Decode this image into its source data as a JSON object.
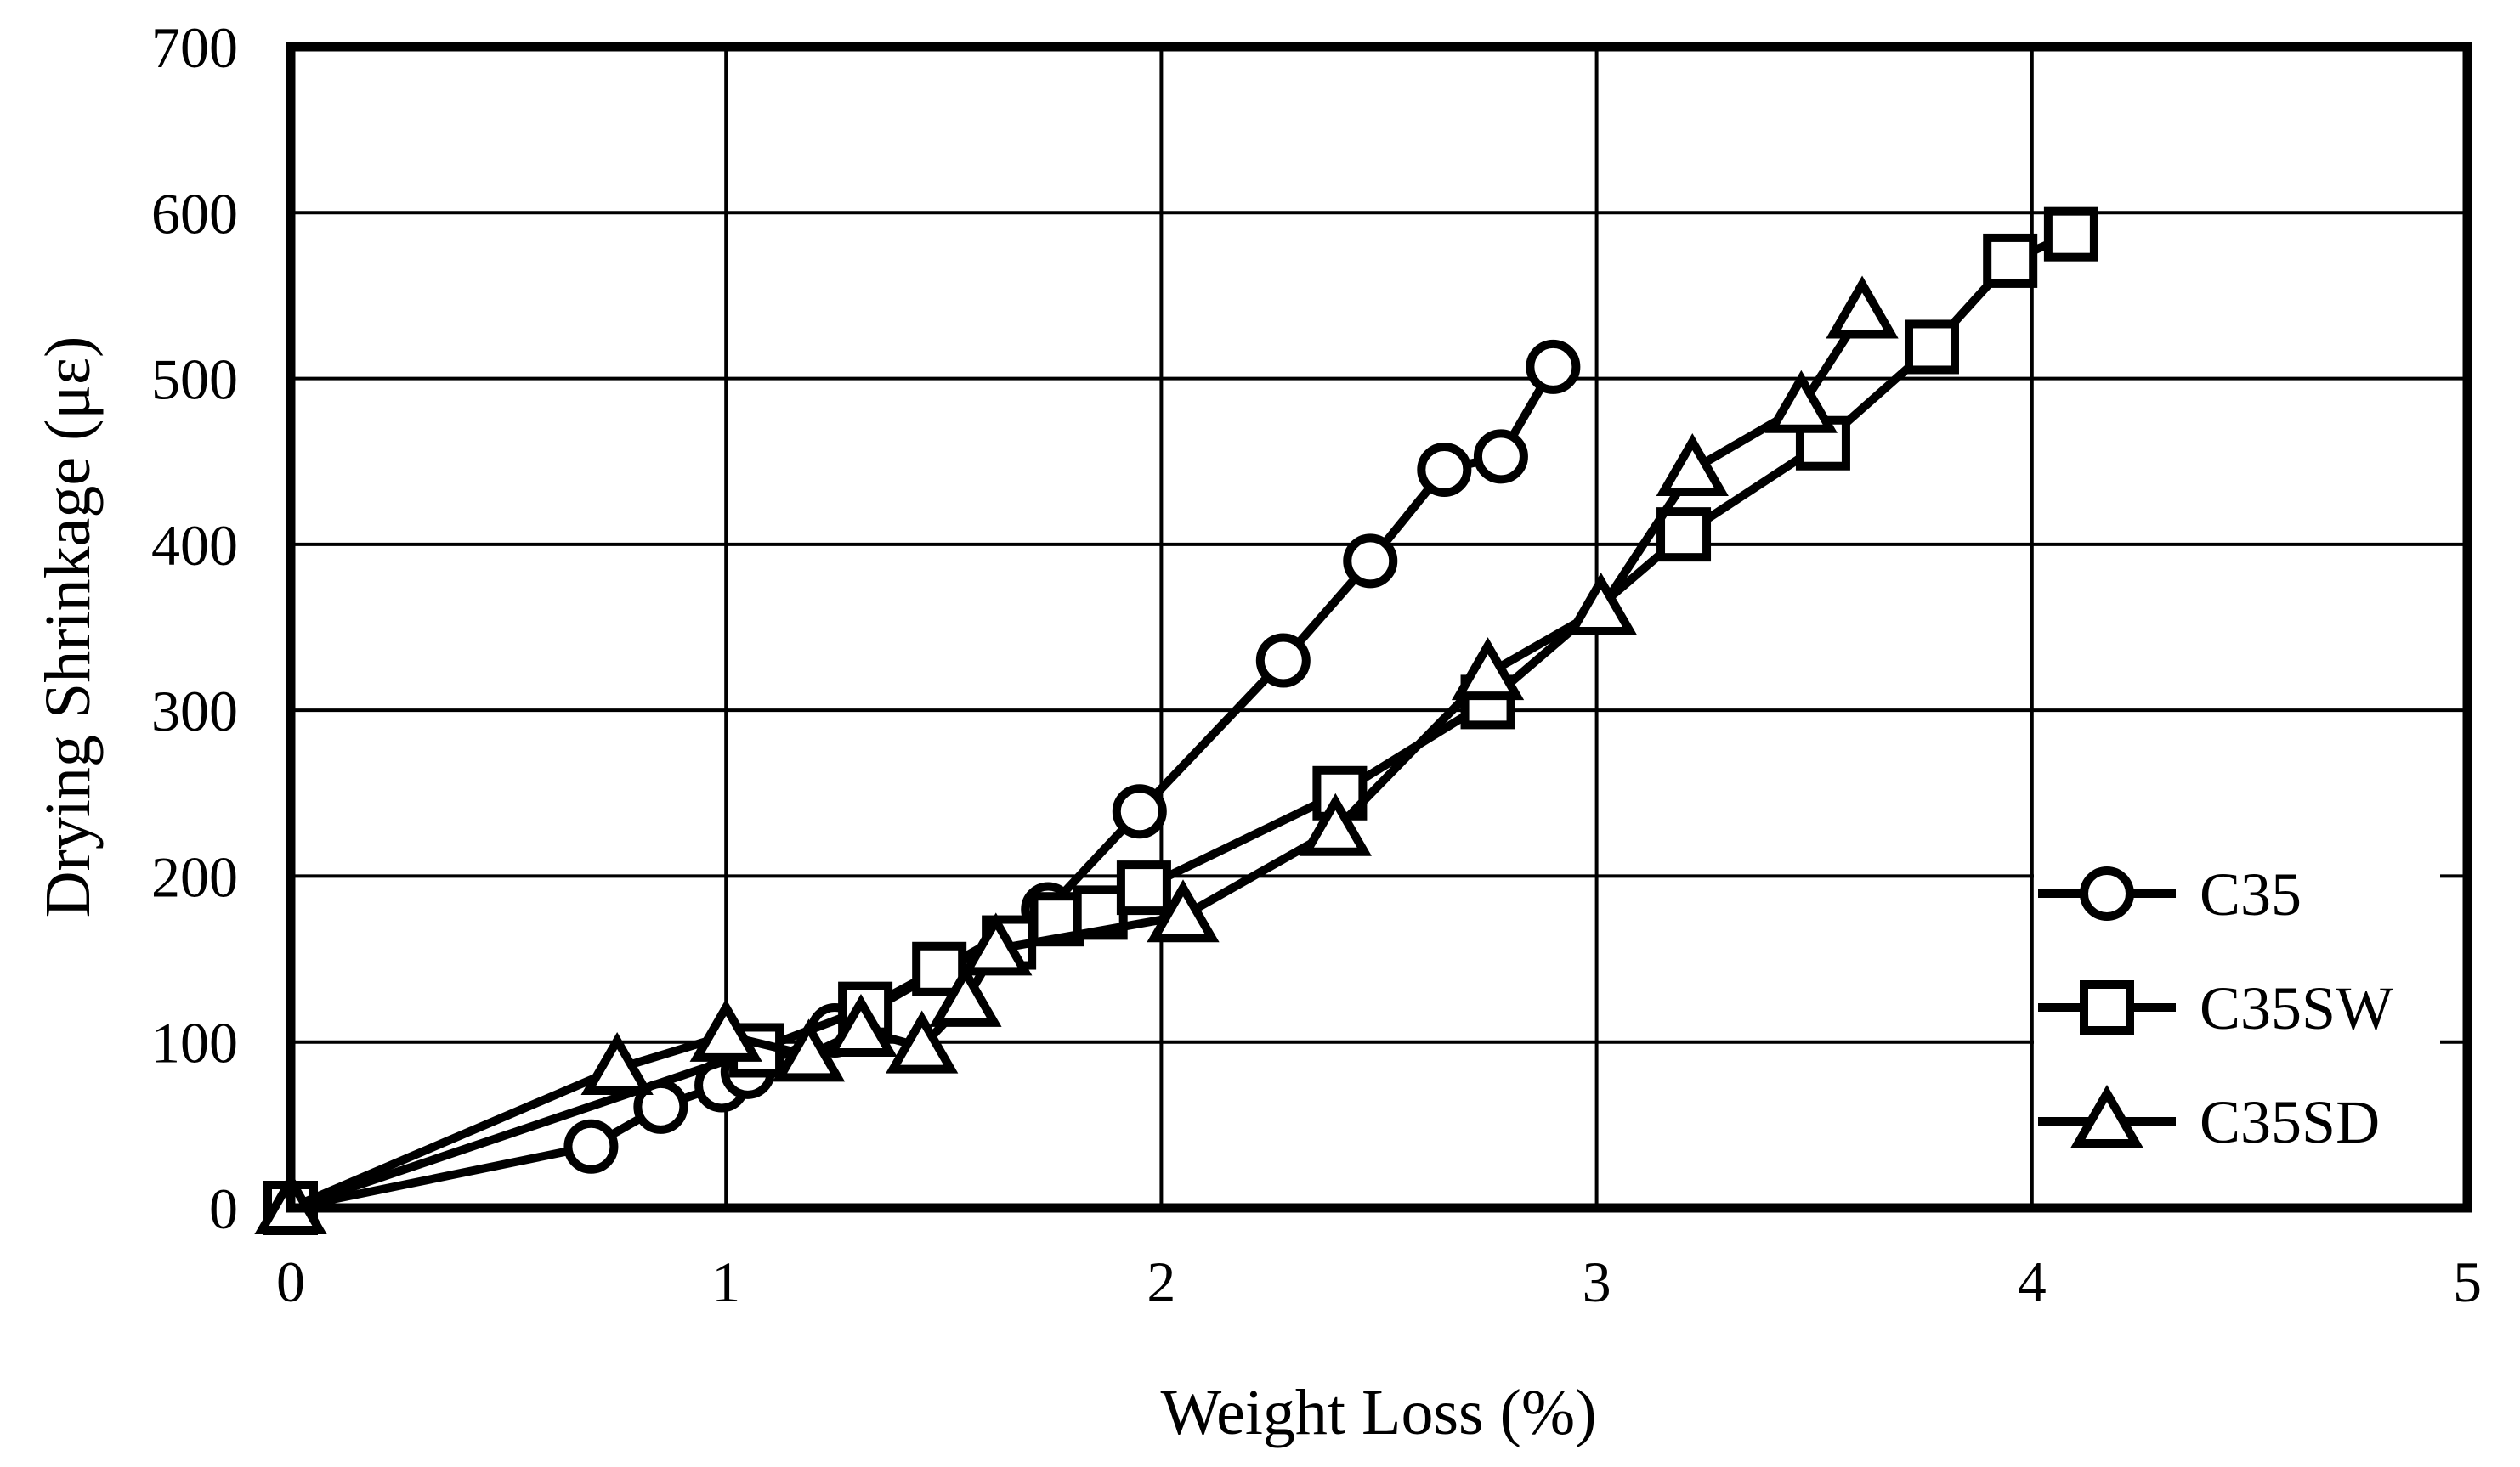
{
  "chart_data": {
    "type": "line",
    "title": "",
    "xlabel": "Weight Loss (%)",
    "ylabel": "Drying Shrinkage (με)",
    "xlim": [
      0,
      5
    ],
    "ylim": [
      0,
      700
    ],
    "x_ticks": [
      "0",
      "1",
      "2",
      "3",
      "4",
      "5"
    ],
    "y_ticks": [
      "0",
      "100",
      "200",
      "300",
      "400",
      "500",
      "600",
      "700"
    ],
    "grid": true,
    "legend_position": "inside-right",
    "series": [
      {
        "name": "C35",
        "marker": "circle",
        "points": [
          [
            0,
            0
          ],
          [
            0.69,
            37
          ],
          [
            0.85,
            61
          ],
          [
            0.99,
            74
          ],
          [
            1.05,
            82
          ],
          [
            1.25,
            107
          ],
          [
            1.74,
            180
          ],
          [
            1.95,
            239
          ],
          [
            2.28,
            330
          ],
          [
            2.48,
            390
          ],
          [
            2.65,
            445
          ],
          [
            2.78,
            453
          ],
          [
            2.9,
            507
          ]
        ]
      },
      {
        "name": "C35SW",
        "marker": "square",
        "points": [
          [
            0,
            0
          ],
          [
            1.07,
            95
          ],
          [
            1.32,
            120
          ],
          [
            1.49,
            144
          ],
          [
            1.65,
            160
          ],
          [
            1.76,
            174
          ],
          [
            1.86,
            178
          ],
          [
            1.96,
            193
          ],
          [
            2.41,
            250
          ],
          [
            2.75,
            305
          ],
          [
            3.2,
            406
          ],
          [
            3.52,
            461
          ],
          [
            3.77,
            519
          ],
          [
            3.95,
            571
          ],
          [
            4.09,
            587
          ]
        ]
      },
      {
        "name": "C35SD",
        "marker": "triangle",
        "points": [
          [
            0,
            0
          ],
          [
            0.75,
            84
          ],
          [
            1.0,
            104
          ],
          [
            1.19,
            92
          ],
          [
            1.31,
            107
          ],
          [
            1.45,
            97
          ],
          [
            1.55,
            125
          ],
          [
            1.62,
            156
          ],
          [
            2.05,
            176
          ],
          [
            2.4,
            228
          ],
          [
            2.75,
            322
          ],
          [
            3.01,
            361
          ],
          [
            3.22,
            445
          ],
          [
            3.47,
            483
          ],
          [
            3.61,
            540
          ]
        ]
      }
    ]
  },
  "colors": {
    "foreground": "#000000",
    "background": "#ffffff"
  }
}
